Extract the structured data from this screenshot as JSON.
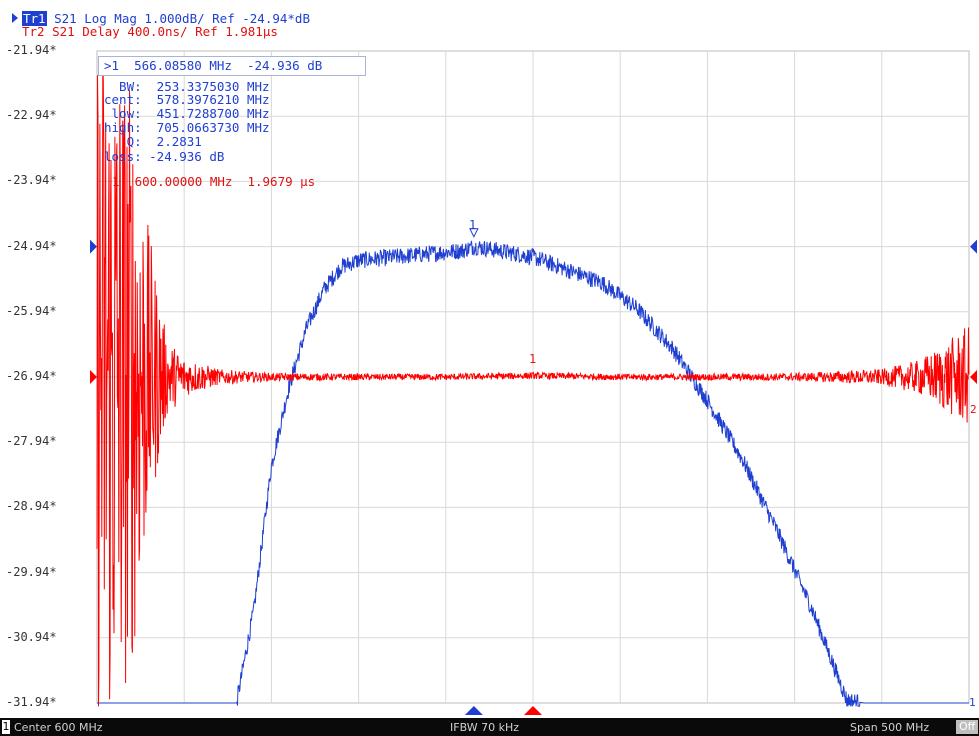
{
  "header": {
    "tr1_label": "Tr1",
    "tr1_rest": " S21 Log Mag 1.000dB/ Ref -24.94*dB",
    "tr2_text": "Tr2 S21 Delay 400.0ns/ Ref 1.981µs"
  },
  "markers": {
    "active_line": ">1  566.08580 MHz  -24.936 dB",
    "bw": "  BW:  253.3375030 MHz",
    "cent": "cent:  578.3976210 MHz",
    "low": " low:  451.7288700 MHz",
    "high": "high:  705.0663730 MHz",
    "q": "   Q:  2.2831",
    "loss": "loss: -24.936 dB",
    "red_line": "1  600.00000 MHz  1.9679 µs",
    "blue_marker_label": "1",
    "red_marker_label": "1",
    "right_red_label": "2",
    "right_blue_label": "1"
  },
  "status": {
    "channel": "1",
    "center": "Center 600 MHz",
    "ifbw": "IFBW 70 kHz",
    "span": "Span 500 MHz",
    "off": "Off"
  },
  "colors": {
    "trace1": "#1f3fd0",
    "trace2": "#ff0000",
    "grid": "#d8d8d8"
  },
  "chart_data": {
    "type": "line",
    "x_label": "",
    "y_tick_labels": [
      "-21.94*",
      "-22.94*",
      "-23.94*",
      "-24.94*",
      "-25.94*",
      "-26.94*",
      "-27.94*",
      "-28.94*",
      "-29.94*",
      "-30.94*",
      "-31.94*"
    ],
    "x_center_mhz": 600,
    "x_span_mhz": 500,
    "xlim": [
      350,
      850
    ],
    "ylim": [
      -31.94,
      -21.94
    ],
    "grid": true,
    "series": [
      {
        "name": "Tr1 S21 Log Mag",
        "x": [
          350,
          430,
          440,
          450,
          460,
          470,
          480,
          490,
          500,
          520,
          540,
          560,
          566.1,
          580,
          600,
          620,
          640,
          660,
          680,
          700,
          720,
          740,
          760,
          770,
          780,
          790,
          800,
          850
        ],
        "y": [
          -31.94,
          -31.94,
          -30.5,
          -28.3,
          -27.1,
          -26.2,
          -25.6,
          -25.25,
          -25.15,
          -25.1,
          -25.05,
          -25.0,
          -24.936,
          -25.0,
          -25.1,
          -25.3,
          -25.5,
          -25.9,
          -26.5,
          -27.3,
          -28.2,
          -29.3,
          -30.5,
          -31.2,
          -31.9,
          -31.94,
          -31.94,
          -31.94
        ]
      },
      {
        "name": "Tr2 S21 Delay",
        "x": [
          350,
          360,
          370,
          380,
          390,
          400,
          420,
          450,
          500,
          550,
          600,
          650,
          700,
          750,
          800,
          820,
          830,
          840,
          850
        ],
        "y": [
          -26.94,
          -26.94,
          -26.94,
          -26.94,
          -26.94,
          -26.94,
          -26.94,
          -26.94,
          -26.94,
          -26.94,
          -26.92,
          -26.94,
          -26.94,
          -26.94,
          -26.94,
          -26.94,
          -26.94,
          -26.94,
          -26.94
        ],
        "noise": [
          5.5,
          5.5,
          4.5,
          2.2,
          0.6,
          0.3,
          0.12,
          0.06,
          0.05,
          0.05,
          0.05,
          0.05,
          0.05,
          0.06,
          0.12,
          0.25,
          0.4,
          0.6,
          0.8
        ]
      }
    ]
  }
}
